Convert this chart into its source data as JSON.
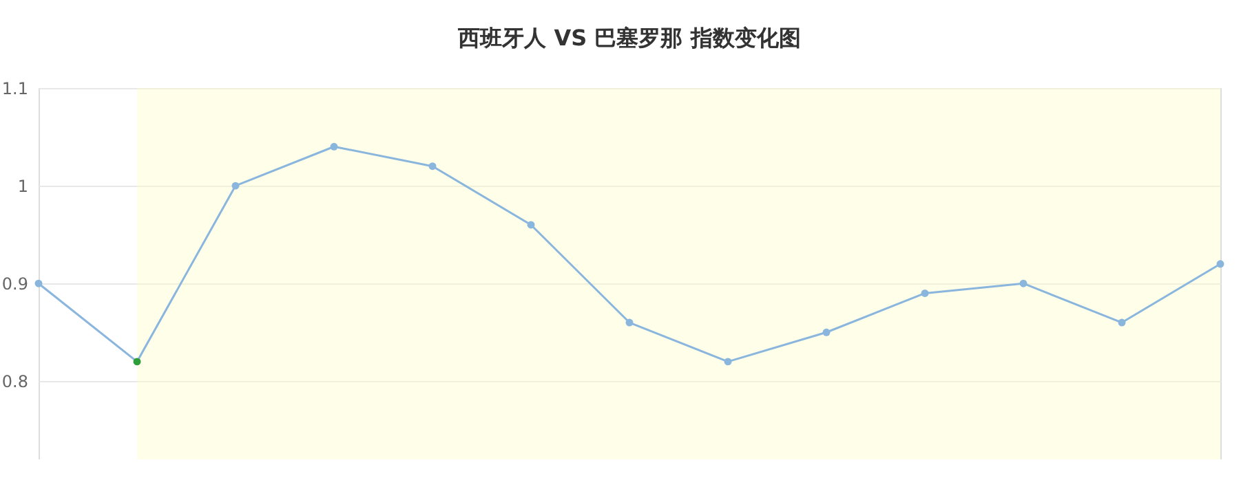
{
  "chart_data": {
    "type": "line",
    "title": "西班牙人 VS 巴塞罗那 指数变化图",
    "categories": [
      null,
      null,
      null,
      null,
      null,
      null,
      null,
      null,
      null,
      null,
      null,
      null,
      null
    ],
    "series": [
      {
        "color": "#8ab6de",
        "values": [
          0.9,
          0.82,
          1.0,
          1.04,
          1.02,
          0.96,
          0.86,
          0.82,
          0.85,
          0.89,
          0.9,
          0.86,
          0.92
        ],
        "colors": [
          "#8ab6de",
          "#2e9e3a",
          "#8ab6de",
          "#8ab6de",
          "#8ab6de",
          "#8ab6de",
          "#8ab6de",
          "#8ab6de",
          "#8ab6de",
          "#8ab6de",
          "#8ab6de",
          "#8ab6de",
          "#8ab6de"
        ]
      }
    ],
    "ylim": [
      0.72,
      1.1
    ],
    "yticks": [
      0.8,
      0.9,
      1,
      1.1
    ],
    "grid": "y",
    "tick_labels": "y",
    "marker": "circle",
    "line_style": "solid"
  }
}
